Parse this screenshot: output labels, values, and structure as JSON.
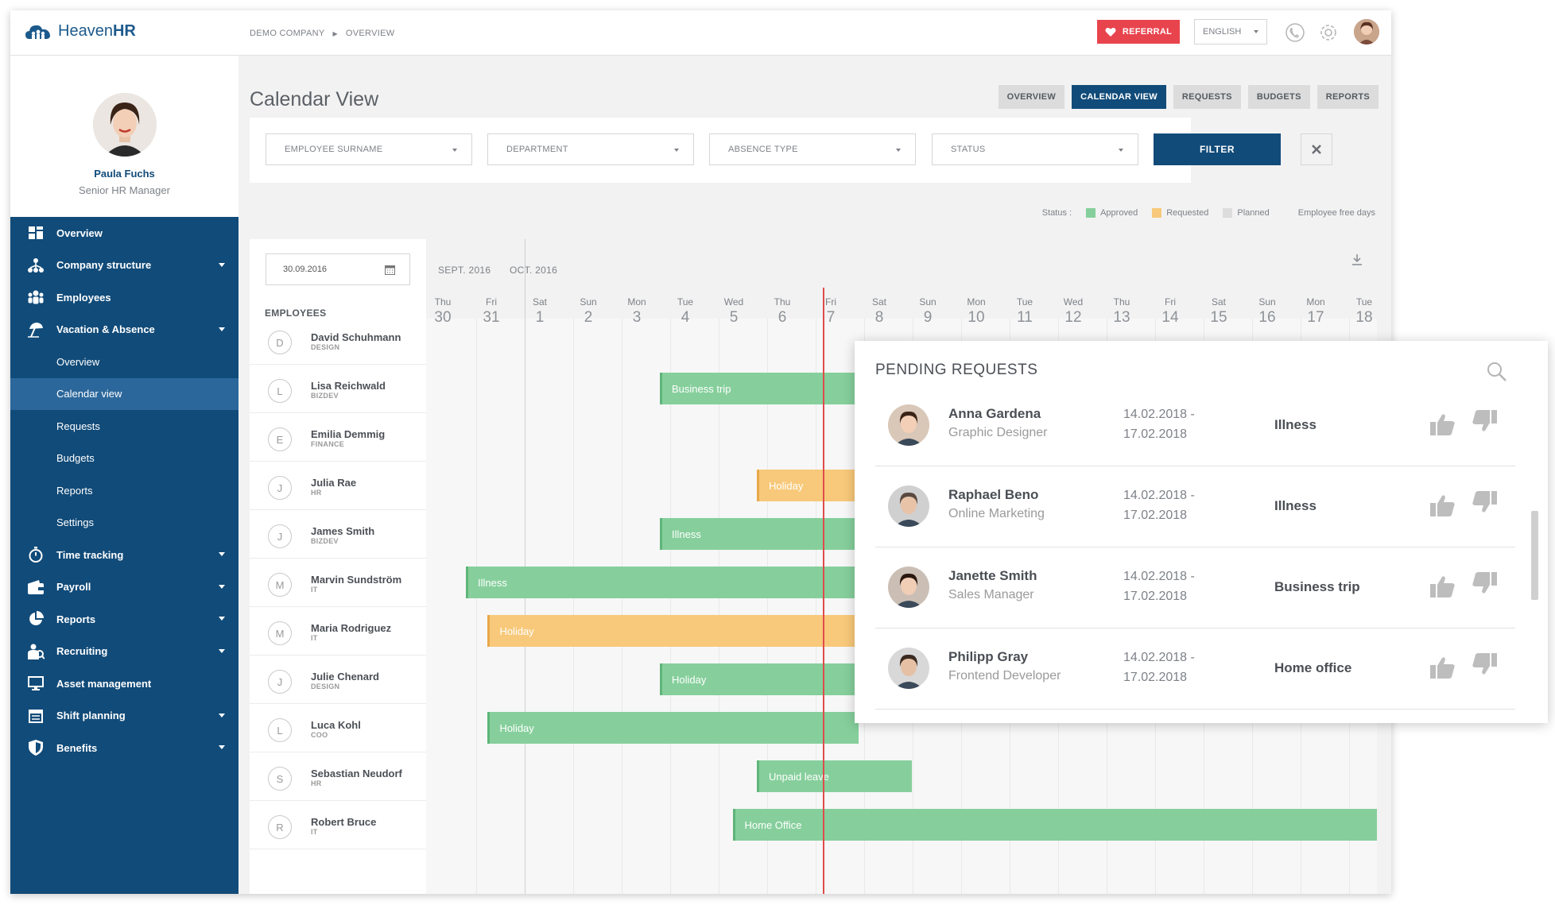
{
  "app": {
    "logo_text": "Heaven",
    "logo_bold": "HR"
  },
  "breadcrumb": {
    "company": "DEMO COMPANY",
    "page": "OVERVIEW"
  },
  "topbar": {
    "referral": "REFERRAL",
    "language": "ENGLISH"
  },
  "profile": {
    "name": "Paula Fuchs",
    "role": "Senior HR Manager"
  },
  "nav": {
    "overview": "Overview",
    "company_structure": "Company structure",
    "employees": "Employees",
    "vacation": "Vacation & Absence",
    "sub": [
      "Overview",
      "Calendar view",
      "Requests",
      "Budgets",
      "Reports",
      "Settings"
    ],
    "time_tracking": "Time tracking",
    "payroll": "Payroll",
    "reports": "Reports",
    "recruiting": "Recruiting",
    "asset": "Asset management",
    "shift": "Shift planning",
    "benefits": "Benefits"
  },
  "page": {
    "title": "Calendar View"
  },
  "tabs": [
    "OVERVIEW",
    "CALENDAR VIEW",
    "REQUESTS",
    "BUDGETS",
    "REPORTS"
  ],
  "filters": {
    "surname": "EMPLOYEE SURNAME",
    "department": "DEPARTMENT",
    "absence": "ABSENCE TYPE",
    "status": "STATUS",
    "button": "FILTER"
  },
  "legend": {
    "label": "Status :",
    "approved": "Approved",
    "requested": "Requested",
    "planned": "Planned",
    "free": "Employee free days",
    "approved_color": "#86cf9c",
    "requested_color": "#f8c97a",
    "planned_color": "#dcdcdc",
    "free_color": "#f2f2f2"
  },
  "calendar": {
    "date": "30.09.2016",
    "employees_label": "EMPLOYEES",
    "months": [
      "SEPT. 2016",
      "OCT. 2016"
    ],
    "days": [
      {
        "n": "Thu",
        "d": "30"
      },
      {
        "n": "Fri",
        "d": "31"
      },
      {
        "n": "Sat",
        "d": "1"
      },
      {
        "n": "Sun",
        "d": "2"
      },
      {
        "n": "Mon",
        "d": "3"
      },
      {
        "n": "Tue",
        "d": "4"
      },
      {
        "n": "Wed",
        "d": "5"
      },
      {
        "n": "Thu",
        "d": "6"
      },
      {
        "n": "Fri",
        "d": "7"
      },
      {
        "n": "Sat",
        "d": "8"
      },
      {
        "n": "Sun",
        "d": "9"
      },
      {
        "n": "Mon",
        "d": "10"
      },
      {
        "n": "Tue",
        "d": "11"
      },
      {
        "n": "Wed",
        "d": "12"
      },
      {
        "n": "Thu",
        "d": "13"
      },
      {
        "n": "Fri",
        "d": "14"
      },
      {
        "n": "Sat",
        "d": "15"
      },
      {
        "n": "Sun",
        "d": "16"
      },
      {
        "n": "Mon",
        "d": "17"
      },
      {
        "n": "Tue",
        "d": "18"
      }
    ],
    "employees": [
      {
        "initial": "D",
        "name": "David Schuhmann",
        "dept": "DESIGN"
      },
      {
        "initial": "L",
        "name": "Lisa Reichwald",
        "dept": "BIZDEV"
      },
      {
        "initial": "E",
        "name": "Emilia Demmig",
        "dept": "FINANCE"
      },
      {
        "initial": "J",
        "name": "Julia Rae",
        "dept": "HR"
      },
      {
        "initial": "J",
        "name": "James Smith",
        "dept": "BIZDEV"
      },
      {
        "initial": "M",
        "name": "Marvin Sundström",
        "dept": "IT"
      },
      {
        "initial": "M",
        "name": "Maria Rodriguez",
        "dept": "IT"
      },
      {
        "initial": "J",
        "name": "Julie Chenard",
        "dept": "DESIGN"
      },
      {
        "initial": "L",
        "name": "Luca Kohl",
        "dept": "COO"
      },
      {
        "initial": "S",
        "name": "Sebastian Neudorf",
        "dept": "HR"
      },
      {
        "initial": "R",
        "name": "Robert Bruce",
        "dept": "IT"
      }
    ],
    "bars": [
      "Business trip",
      "Holiday",
      "Illness",
      "Illness",
      "Holiday",
      "Holiday",
      "Holiday",
      "Unpaid leave",
      "Home Office"
    ]
  },
  "pending": {
    "title": "PENDING REQUESTS",
    "items": [
      {
        "name": "Anna Gardena",
        "role": "Graphic Designer",
        "from": "14.02.2018 -",
        "to": "17.02.2018",
        "type": "Illness"
      },
      {
        "name": "Raphael Beno",
        "role": "Online Marketing",
        "from": "14.02.2018 -",
        "to": "17.02.2018",
        "type": "Illness"
      },
      {
        "name": "Janette Smith",
        "role": "Sales Manager",
        "from": "14.02.2018 -",
        "to": "17.02.2018",
        "type": "Business trip"
      },
      {
        "name": "Philipp Gray",
        "role": "Frontend Developer",
        "from": "14.02.2018 -",
        "to": "17.02.2018",
        "type": "Home office"
      }
    ]
  }
}
